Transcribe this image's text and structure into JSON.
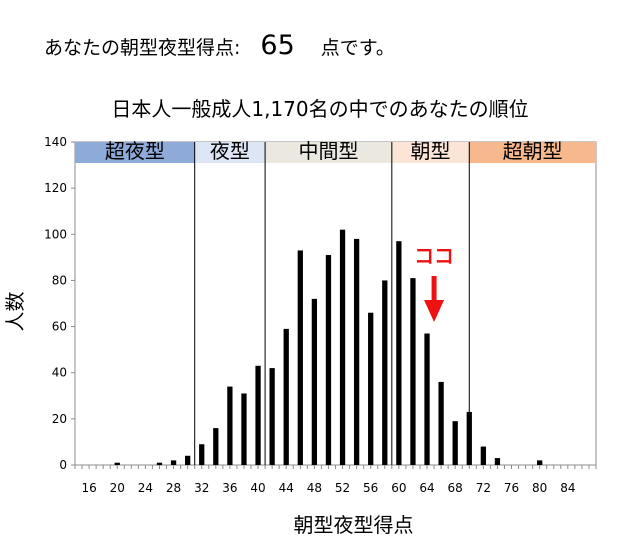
{
  "header": {
    "score_prefix": "あなたの朝型夜型得点:",
    "score_value": "65",
    "score_suffix": "点です。"
  },
  "chart_data": {
    "type": "bar",
    "title": "日本人一般成人1,170名の中でのあなたの順位",
    "xlabel": "朝型夜型得点",
    "ylabel": "人数",
    "ylim": [
      0,
      140
    ],
    "yticks": [
      0,
      20,
      40,
      60,
      80,
      100,
      120,
      140
    ],
    "xlim": [
      14,
      88
    ],
    "xticks": [
      16,
      20,
      24,
      28,
      32,
      36,
      40,
      44,
      48,
      52,
      56,
      60,
      64,
      68,
      72,
      76,
      80,
      84
    ],
    "x": [
      20,
      26,
      28,
      30,
      32,
      34,
      36,
      38,
      40,
      42,
      44,
      46,
      48,
      50,
      52,
      54,
      56,
      58,
      60,
      62,
      64,
      66,
      68,
      70,
      72,
      74,
      80
    ],
    "values": [
      1,
      1,
      2,
      4,
      9,
      16,
      34,
      31,
      43,
      42,
      59,
      93,
      72,
      91,
      102,
      98,
      66,
      80,
      97,
      81,
      57,
      36,
      19,
      23,
      8,
      3,
      2
    ],
    "grid": false,
    "bands": [
      {
        "label": "超夜型",
        "from": 14,
        "to": 31,
        "color": "#8eaad8"
      },
      {
        "label": "夜型",
        "from": 31,
        "to": 41,
        "color": "#dde6f4"
      },
      {
        "label": "中間型",
        "from": 41,
        "to": 59,
        "color": "#ebe9df"
      },
      {
        "label": "朝型",
        "from": 59,
        "to": 70,
        "color": "#fce5d6"
      },
      {
        "label": "超朝型",
        "from": 70,
        "to": 88,
        "color": "#f6b88c"
      }
    ],
    "marker": {
      "label": "ココ",
      "x": 65,
      "color": "#ee1111"
    }
  }
}
